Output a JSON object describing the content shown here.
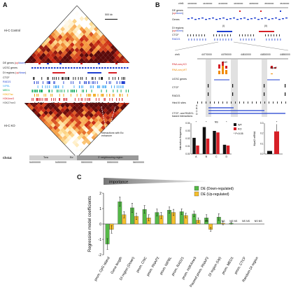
{
  "panelA": {
    "letter": "A",
    "scalebar": "500 kb",
    "hic_control": "Hi-C Control",
    "hic_ko": "Hi-C KO",
    "tracks": [
      {
        "label": "DE genes (",
        "up": "up",
        "sep": "/",
        "down": "down",
        "end": ")"
      },
      {
        "label": "UCSC genes"
      },
      {
        "label": "DI regions (",
        "up": "up",
        "sep": "/",
        "down": "down",
        "end": ")"
      }
    ],
    "chip": [
      "CTCF",
      "RAD21",
      "NIPBL",
      "MED1",
      "H3K27ac",
      "H3K4me3",
      "H3K27me3"
    ],
    "chip_colors": [
      "#111111",
      "#1f3fd0",
      "#3fa9f5",
      "#00a651",
      "#f0a000",
      "#d62027",
      "#444444"
    ],
    "annotation": "Interactions with Eα enhancer",
    "chrom": "Chr14:",
    "regions": [
      "Tcra",
      "Eα",
      "3' neighbouring region"
    ],
    "coords": [
      "54000000",
      "54500000",
      "55000000",
      "55500000",
      "56000000"
    ]
  },
  "panelB": {
    "letter": "B",
    "chr_label": "chr6:",
    "coords_top": [
      "44000000",
      "44200000",
      "44400000",
      "44600000",
      "44800000",
      "45000000",
      "45200000"
    ],
    "de_genes": "DE genes",
    "de_updown": {
      "up": "up",
      "sep": "/",
      "down": "down"
    },
    "genes": "Genes",
    "di_regions": "DI regions",
    "di_updown": {
      "up": "up",
      "sep": "/",
      "down": "down"
    },
    "di_marks": [
      "(i)",
      "(ii)"
    ],
    "ctcf": "CTCF",
    "rad21": "RAD21",
    "coords_zoom": [
      "chr6:",
      "44770000",
      "44790000",
      "44810000",
      "44830000",
      "44850000"
    ],
    "rnaseq_ko": "RNA-seq KO",
    "rnaseq_wt": "RNA-seq WT",
    "gene_cd3": "Cd3",
    "gene_mpzl2": "Mpzl2",
    "ucsc": "UCSC genes",
    "ctcf2": "CTCF",
    "rad21_2": "RAD21",
    "hind": "Hind III sites",
    "anchors": [
      "A",
      "B",
      "C",
      "D"
    ],
    "ctcf_rad21_int": "CTCF- and RAD21-based interactions",
    "bar_chart": {
      "ylabel": "Interaction frequency",
      "categories": [
        "A",
        "B",
        "C",
        "D"
      ],
      "series": [
        {
          "name": "WT",
          "color": "#111111",
          "values": [
            0.021,
            0.035,
            0.03,
            0.012
          ]
        },
        {
          "name": "KO",
          "color": "#d62027",
          "values": [
            0.011,
            0.02,
            0.028,
            0.011
          ]
        }
      ],
      "ylim": [
        0,
        0.04
      ],
      "yticks": [
        "0.00",
        "0.01",
        "0.02",
        "0.03",
        "0.04"
      ],
      "sig": [
        "*",
        "*",
        "NS",
        "*"
      ],
      "legend_note": "* P<0.05"
    },
    "mpzl2_chart": {
      "ylabel": "Mpzl2 mRNA",
      "values": [
        0.03,
        0.22
      ],
      "yticks": [
        "0.0",
        "0.1",
        "0.2",
        "0.3"
      ],
      "sig": "*"
    }
  },
  "panelC": {
    "letter": "C",
    "importance": "importance",
    "ylabel": "Regression model coefficients",
    "legend": [
      {
        "name": "DE (Down-regulated)",
        "color": "#55b947"
      },
      {
        "name": "DE (Up-regulated)",
        "color": "#f5be2c"
      }
    ],
    "chart_data": {
      "type": "bar",
      "categories": [
        "prom. CpG island",
        "Gene length",
        "DI region (Down)",
        "prom. CNC",
        "prom. RNAP2",
        "prom. NIPBL",
        "prom. RAD21",
        "prom. H3K4me3",
        "Paused prom. RNAP2",
        "DI region (Up)",
        "prom. MED1",
        "prom. CTCF",
        "Random DI region"
      ],
      "series": [
        {
          "name": "DE (Down-regulated)",
          "values": [
            -1.3,
            1.45,
            1.05,
            0.95,
            0.75,
            0.9,
            0.8,
            0.65,
            0.4,
            0.45,
            0.05,
            0,
            0
          ]
        },
        {
          "name": "DE (Up-regulated)",
          "values": [
            -0.35,
            0.6,
            0.5,
            0.4,
            0.55,
            0.75,
            0.55,
            0.25,
            -0.35,
            0.05,
            0,
            0,
            0
          ]
        }
      ],
      "errors_down": [
        0.35,
        0.3,
        0.3,
        0.25,
        0.22,
        0.2,
        0.18,
        0.18,
        0.2,
        0.22,
        0.06,
        0,
        0
      ],
      "errors_up": [
        0.25,
        0.2,
        0.2,
        0.2,
        0.2,
        0.2,
        0.15,
        0.15,
        0.12,
        0.1,
        0,
        0,
        0
      ],
      "ns_labels": [
        "",
        "",
        "",
        "",
        "",
        "",
        "",
        "",
        "NS",
        "",
        "NS",
        "NS",
        "NS"
      ],
      "ns_labels_up": [
        "",
        "",
        "",
        "",
        "",
        "",
        "",
        "",
        "",
        "NS",
        "NS",
        "NS",
        "NS"
      ],
      "ylim": [
        -2,
        2
      ],
      "yticks": [
        "-2",
        "-1",
        "0",
        "1",
        "2"
      ]
    }
  }
}
